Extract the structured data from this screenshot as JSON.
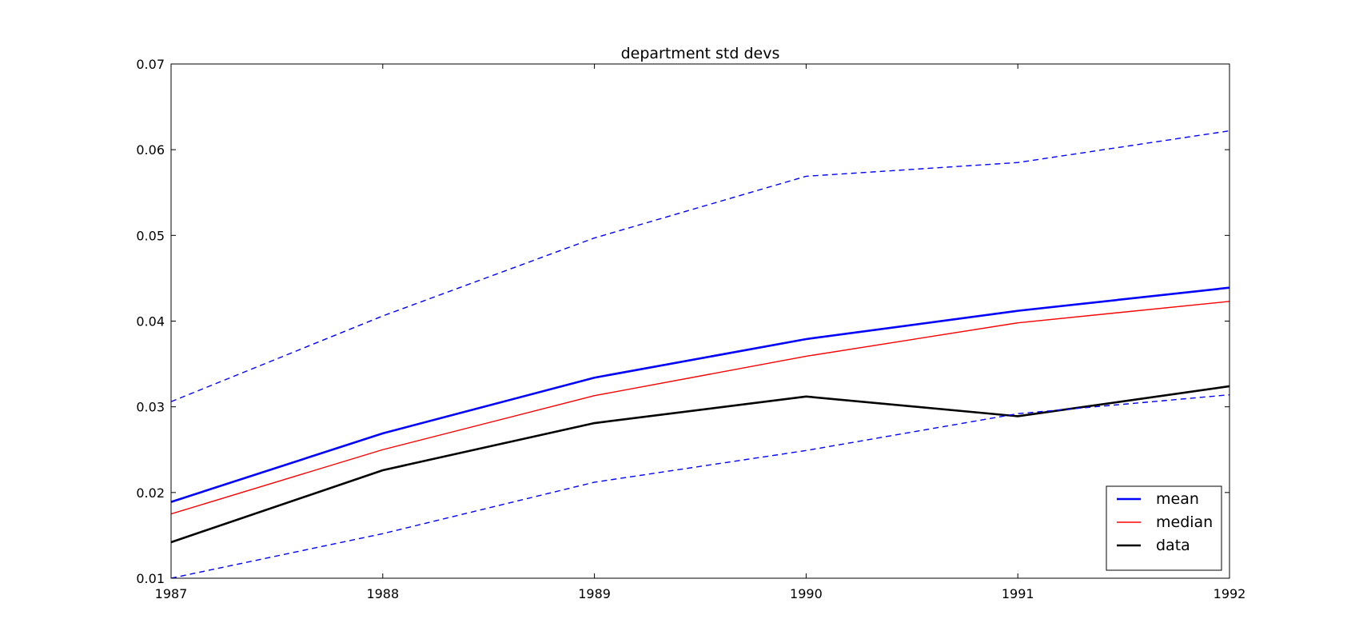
{
  "chart_data": {
    "type": "line",
    "title": "department std devs",
    "xlabel": "",
    "ylabel": "",
    "x": [
      1987,
      1988,
      1989,
      1990,
      1991,
      1992
    ],
    "xlim": [
      1987,
      1992
    ],
    "ylim": [
      0.01,
      0.07
    ],
    "x_ticks": [
      "1987",
      "1988",
      "1989",
      "1990",
      "1991",
      "1992"
    ],
    "y_ticks": [
      "0.01",
      "0.02",
      "0.03",
      "0.04",
      "0.05",
      "0.06",
      "0.07"
    ],
    "grid": false,
    "legend_position": "lower-right",
    "series": [
      {
        "name": "mean",
        "values": [
          0.0189,
          0.0269,
          0.0334,
          0.0379,
          0.0412,
          0.0439
        ],
        "color": "#0000ff",
        "style": "solid",
        "in_legend": true,
        "weight": "thick"
      },
      {
        "name": "median",
        "values": [
          0.0175,
          0.025,
          0.0313,
          0.0359,
          0.0398,
          0.0423
        ],
        "color": "#ff0000",
        "style": "solid",
        "in_legend": true,
        "weight": "thin"
      },
      {
        "name": "data",
        "values": [
          0.0142,
          0.0226,
          0.0281,
          0.0312,
          0.0289,
          0.0324
        ],
        "color": "#000000",
        "style": "solid",
        "in_legend": true,
        "weight": "thick"
      },
      {
        "name": "",
        "values": [
          0.0306,
          0.0406,
          0.0497,
          0.0569,
          0.0585,
          0.0622
        ],
        "color": "#0000ff",
        "style": "dashed",
        "in_legend": false,
        "weight": "thin"
      },
      {
        "name": "",
        "values": [
          0.01,
          0.0152,
          0.0212,
          0.0249,
          0.0292,
          0.0314
        ],
        "color": "#0000ff",
        "style": "dashed",
        "in_legend": false,
        "weight": "thin"
      }
    ]
  }
}
